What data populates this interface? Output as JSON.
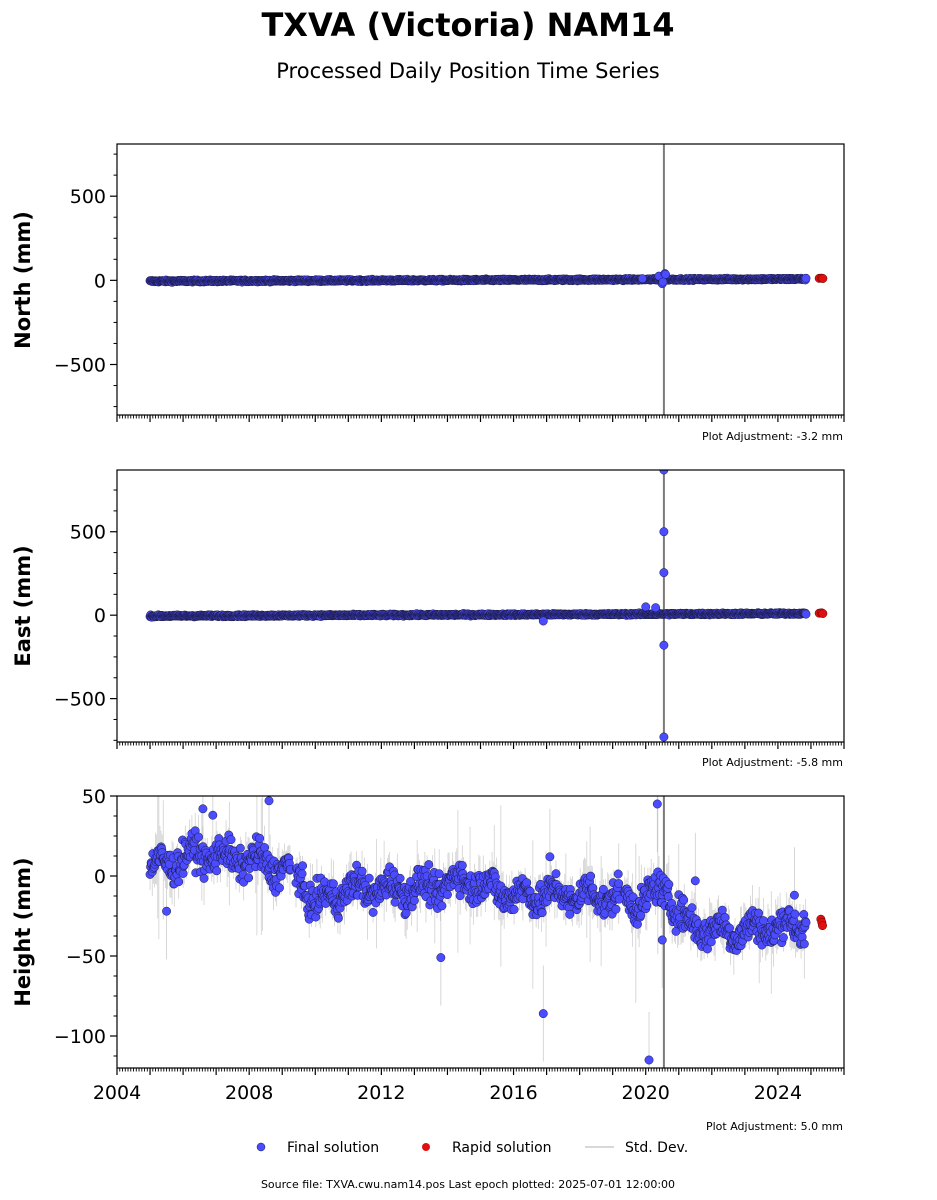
{
  "title": "TXVA (Victoria) NAM14",
  "subtitle": "Processed Daily Position Time Series",
  "source_note": "Source file: TXVA.cwu.nam14.pos  Last epoch plotted: 2025-07-01 12:00:00",
  "legend": {
    "final": "Final solution",
    "rapid": "Rapid solution",
    "std": "Std. Dev."
  },
  "colors": {
    "final": "#4b4bff",
    "final_edge": "#1a1a40",
    "rapid": "#e01010",
    "std": "#aaaaaa",
    "event_line": "#7a7a7a"
  },
  "chart_data": [
    {
      "type": "scatter",
      "ylabel": "North (mm)",
      "ylim": [
        -800,
        810
      ],
      "yticks": [
        -500,
        0,
        500
      ],
      "xlim": [
        2004.0,
        2026.0
      ],
      "xticks": [],
      "adjustment": "Plot Adjustment: -3.2 mm",
      "event_lines": [
        2020.55
      ],
      "x_start": 2005.0,
      "x_end": 2024.85,
      "trend_start": -5,
      "trend_end": 8,
      "noise": 4,
      "std_amp": 3,
      "outliers": [
        [
          2020.4,
          25
        ],
        [
          2020.5,
          -20
        ],
        [
          2020.58,
          40
        ],
        [
          2020.6,
          35
        ],
        [
          2020.52,
          -10
        ],
        [
          2019.9,
          10
        ]
      ],
      "rapid": [
        [
          2025.25,
          12
        ],
        [
          2025.32,
          13
        ],
        [
          2025.36,
          11
        ]
      ]
    },
    {
      "type": "scatter",
      "ylabel": "East (mm)",
      "ylim": [
        -760,
        870
      ],
      "yticks": [
        -500,
        0,
        500
      ],
      "xlim": [
        2004.0,
        2026.0
      ],
      "xticks": [],
      "adjustment": "Plot Adjustment: -5.8 mm",
      "event_lines": [
        2020.55
      ],
      "x_start": 2005.0,
      "x_end": 2024.85,
      "trend_start": -5,
      "trend_end": 10,
      "noise": 4,
      "std_amp": 3,
      "outliers": [
        [
          2016.9,
          -35
        ],
        [
          2020.55,
          870
        ],
        [
          2020.55,
          500
        ],
        [
          2020.55,
          255
        ],
        [
          2020.55,
          -180
        ],
        [
          2020.55,
          -730
        ],
        [
          2020.0,
          50
        ],
        [
          2020.3,
          45
        ]
      ],
      "rapid": [
        [
          2025.25,
          12
        ],
        [
          2025.32,
          14
        ],
        [
          2025.36,
          10
        ]
      ]
    },
    {
      "type": "scatter",
      "ylabel": "Height (mm)",
      "ylim": [
        -120,
        50
      ],
      "yticks": [
        -100,
        -50,
        0,
        50
      ],
      "xlim": [
        2004.0,
        2026.0
      ],
      "xticks": [
        2004,
        2008,
        2012,
        2016,
        2020,
        2024
      ],
      "adjustment": "Plot Adjustment: 5.0 mm",
      "event_lines": [
        2020.55
      ],
      "x_start": 2005.0,
      "x_end": 2024.85,
      "trend_points": [
        [
          2005.0,
          5
        ],
        [
          2006.5,
          14
        ],
        [
          2008.5,
          8
        ],
        [
          2009.5,
          0
        ],
        [
          2010.0,
          -18
        ],
        [
          2011.0,
          -8
        ],
        [
          2013.5,
          -8
        ],
        [
          2014.5,
          -2
        ],
        [
          2016.0,
          -12
        ],
        [
          2018.5,
          -12
        ],
        [
          2019.8,
          -16
        ],
        [
          2020.6,
          -8
        ],
        [
          2021.2,
          -30
        ],
        [
          2022.5,
          -35
        ],
        [
          2024.85,
          -30
        ]
      ],
      "noise": 7,
      "std_amp": 12,
      "outliers": [
        [
          2008.6,
          47
        ],
        [
          2006.6,
          42
        ],
        [
          2006.9,
          38
        ],
        [
          2013.8,
          -51
        ],
        [
          2016.9,
          -86
        ],
        [
          2020.1,
          -115
        ],
        [
          2020.35,
          45
        ],
        [
          2020.5,
          -40
        ],
        [
          2005.5,
          -22
        ],
        [
          2021.5,
          -3
        ],
        [
          2017.1,
          12
        ],
        [
          2024.5,
          -12
        ]
      ],
      "rapid": [
        [
          2025.3,
          -27
        ],
        [
          2025.33,
          -29
        ],
        [
          2025.35,
          -31
        ]
      ]
    }
  ]
}
